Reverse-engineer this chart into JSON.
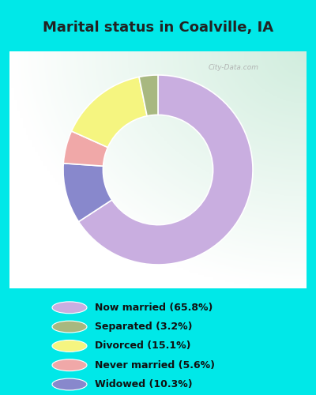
{
  "title": "Marital status in Coalville, IA",
  "values": [
    65.8,
    10.3,
    5.6,
    15.1,
    3.2
  ],
  "colors": [
    "#c9aee0",
    "#8888cc",
    "#f0a8a8",
    "#f5f580",
    "#a8b880"
  ],
  "legend_labels": [
    "Now married (65.8%)",
    "Separated (3.2%)",
    "Divorced (15.1%)",
    "Never married (5.6%)",
    "Widowed (10.3%)"
  ],
  "legend_colors": [
    "#c9aee0",
    "#a8b880",
    "#f5f580",
    "#f0a8a8",
    "#8888cc"
  ],
  "bg_outer": "#00e8e8",
  "title_color": "#222222",
  "title_fontsize": 13,
  "donut_width": 0.42,
  "start_angle": 90,
  "watermark": "City-Data.com"
}
